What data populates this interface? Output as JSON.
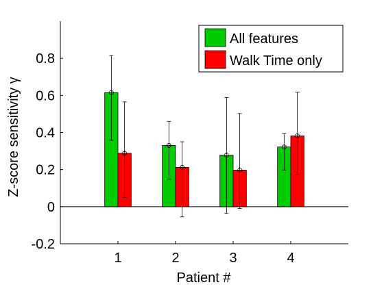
{
  "chart_data": {
    "type": "bar",
    "xlabel": "Patient #",
    "ylabel": "Z-score sensitivity γ",
    "categories": [
      "1",
      "2",
      "3",
      "4"
    ],
    "ylim": [
      -0.2,
      1.0
    ],
    "yticks": [
      "-0.2",
      "0",
      "0.2",
      "0.4",
      "0.6",
      "0.8"
    ],
    "ytick_values": [
      -0.2,
      0,
      0.2,
      0.4,
      0.6,
      0.8
    ],
    "xlim": [
      0,
      5
    ],
    "grid": false,
    "legend_position": "top-right",
    "series": [
      {
        "name": "All features",
        "color": "#00cc00",
        "values": [
          0.615,
          0.33,
          0.278,
          0.322
        ],
        "err_low": [
          0.358,
          0.148,
          -0.035,
          0.198
        ],
        "err_high": [
          0.815,
          0.46,
          0.588,
          0.395
        ]
      },
      {
        "name": "Walk Time only",
        "color": "#ff0000",
        "values": [
          0.288,
          0.212,
          0.197,
          0.382
        ],
        "err_low": [
          0.05,
          -0.055,
          -0.01,
          0.172
        ],
        "err_high": [
          0.565,
          0.35,
          0.502,
          0.618
        ]
      }
    ]
  }
}
